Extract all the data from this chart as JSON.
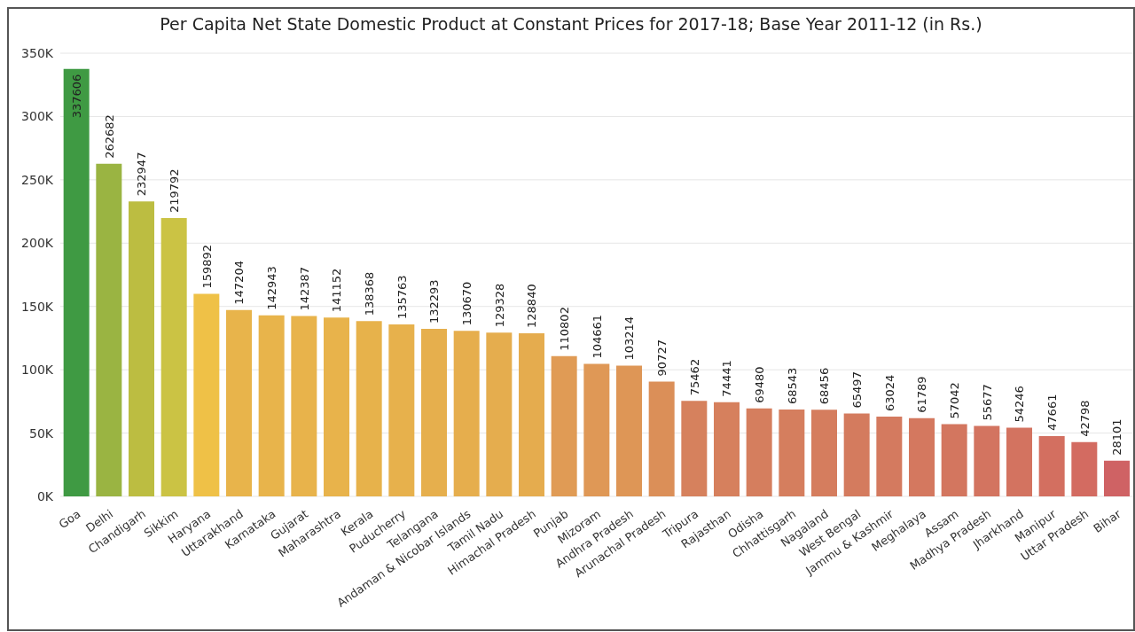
{
  "chart_data": {
    "type": "bar",
    "title": "Per Capita Net State Domestic Product at Constant Prices for 2017-18; Base Year 2011-12 (in Rs.)",
    "categories": [
      "Goa",
      "Delhi",
      "Chandigarh",
      "Sikkim",
      "Haryana",
      "Uttarakhand",
      "Karnataka",
      "Gujarat",
      "Maharashtra",
      "Kerala",
      "Puducherry",
      "Telangana",
      "Andaman & Nicobar Islands",
      "Tamil Nadu",
      "Himachal Pradesh",
      "Punjab",
      "Mizoram",
      "Andhra Pradesh",
      "Arunachal Pradesh",
      "Tripura",
      "Rajasthan",
      "Odisha",
      "Chhattisgarh",
      "Nagaland",
      "West Bengal",
      "Jammu & Kashmir",
      "Meghalaya",
      "Assam",
      "Madhya Pradesh",
      "Jharkhand",
      "Manipur",
      "Uttar Pradesh",
      "Bihar"
    ],
    "values": [
      337606,
      262682,
      232947,
      219792,
      159892,
      147204,
      142943,
      142387,
      141152,
      138368,
      135763,
      132293,
      130670,
      129328,
      128840,
      110802,
      104661,
      103214,
      90727,
      75462,
      74441,
      69480,
      68543,
      68456,
      65497,
      63024,
      61789,
      57042,
      55677,
      54246,
      47661,
      42798,
      28101
    ],
    "colors": [
      "#3f9a43",
      "#9ab442",
      "#bcbd41",
      "#cbc344",
      "#efc147",
      "#e8b44b",
      "#e8b44b",
      "#e8b34b",
      "#e8b34b",
      "#e7b24b",
      "#e7b14c",
      "#e6af4d",
      "#e6ae4d",
      "#e5ad4e",
      "#e5ac4e",
      "#e09b55",
      "#df9856",
      "#de9656",
      "#db8f58",
      "#d6815d",
      "#d6805d",
      "#d57e5e",
      "#d57e5e",
      "#d57d5e",
      "#d47b5e",
      "#d47a5f",
      "#d4785f",
      "#d3765f",
      "#d37460",
      "#d37360",
      "#d36f60",
      "#d36b61",
      "#cf6264"
    ],
    "ylim": [
      0,
      350000
    ],
    "yticks": [
      {
        "value": 0,
        "label": "0K"
      },
      {
        "value": 50000,
        "label": "50K"
      },
      {
        "value": 100000,
        "label": "100K"
      },
      {
        "value": 150000,
        "label": "150K"
      },
      {
        "value": 200000,
        "label": "200K"
      },
      {
        "value": 250000,
        "label": "250K"
      },
      {
        "value": 300000,
        "label": "300K"
      },
      {
        "value": 350000,
        "label": "350K"
      }
    ],
    "grid": "y",
    "data_labels": true
  }
}
